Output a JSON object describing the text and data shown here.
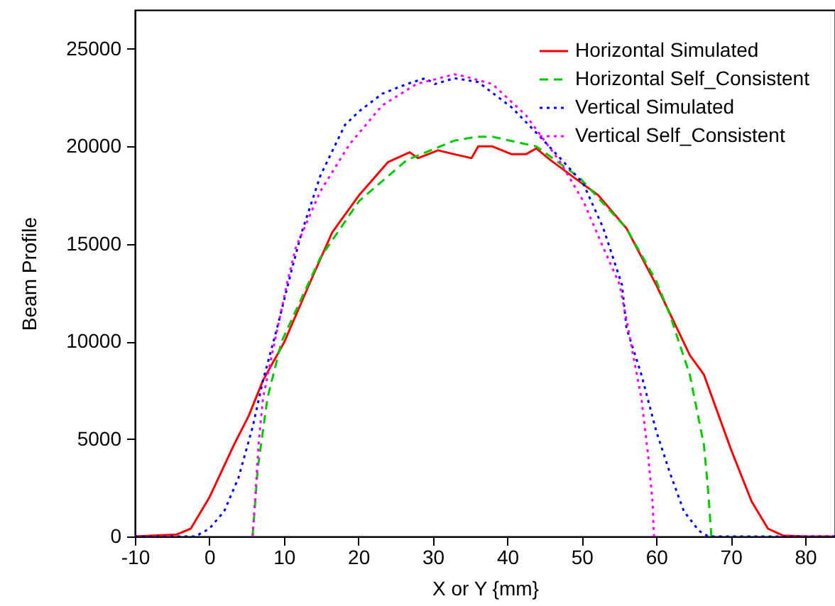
{
  "chart_data": {
    "type": "line",
    "xlabel": "X or Y {mm}",
    "ylabel": "Beam Profile",
    "xlim": [
      -10,
      84
    ],
    "ylim": [
      0,
      27000
    ],
    "xticks": [
      -10,
      0,
      10,
      20,
      30,
      40,
      50,
      60,
      70,
      80
    ],
    "yticks": [
      0,
      5000,
      10000,
      15000,
      20000,
      25000
    ],
    "legend": "top right",
    "grid": false,
    "marker": "none",
    "series": [
      {
        "name": "Horizontal Simulated",
        "color": "#ff0000",
        "line_style": "solid",
        "x": [
          -10,
          -4.4,
          -2.5,
          0,
          3.3,
          5.3,
          7.2,
          10.1,
          13.6,
          16.5,
          20.1,
          24,
          26.9,
          28,
          30.7,
          32.9,
          35.2,
          36.1,
          38,
          40.6,
          42.5,
          43.9,
          45.8,
          49.7,
          52.2,
          56,
          60,
          64.5,
          66.4,
          70,
          72.8,
          75,
          77,
          80,
          84
        ],
        "values": [
          0,
          100,
          400,
          2000,
          4700,
          6200,
          8000,
          10000,
          13100,
          15600,
          17500,
          19200,
          19700,
          19400,
          19800,
          19600,
          19400,
          20000,
          20000,
          19600,
          19600,
          19900,
          19300,
          18200,
          17500,
          15800,
          12900,
          9300,
          8300,
          4500,
          1800,
          400,
          50,
          0,
          0
        ]
      },
      {
        "name": "Horizontal Self_Consistent",
        "color": "#00cc00",
        "line_style": "dashed",
        "x": [
          5.8,
          6.5,
          7.8,
          9.7,
          14.9,
          20.1,
          26.5,
          32.9,
          36,
          38,
          43.9,
          49.7,
          56,
          60,
          61.8,
          64.5,
          66.4,
          67,
          67.4
        ],
        "values": [
          0,
          3500,
          7100,
          10000,
          14300,
          17200,
          19300,
          20300,
          20500,
          20500,
          20000,
          18400,
          15800,
          13100,
          11400,
          8300,
          4700,
          2200,
          0
        ]
      },
      {
        "name": "Vertical Simulated",
        "color": "#0000ff",
        "line_style": "dotted",
        "x": [
          -10,
          -1.9,
          0,
          2,
          3.9,
          5.8,
          7.2,
          9.1,
          11,
          12.4,
          14.9,
          18.2,
          20.1,
          23.2,
          26.5,
          29,
          30.3,
          32.9,
          36.1,
          40.6,
          43.9,
          47.1,
          50.2,
          52.9,
          55.4,
          56,
          58,
          60,
          61.8,
          63.7,
          65.7,
          67,
          84
        ],
        "values": [
          0,
          0,
          400,
          1300,
          3000,
          5600,
          8000,
          10700,
          13600,
          15600,
          18500,
          21100,
          21800,
          22700,
          23200,
          23500,
          23200,
          23500,
          23300,
          22000,
          20700,
          19400,
          18100,
          15800,
          12900,
          10700,
          8300,
          5400,
          3300,
          1300,
          300,
          0,
          0
        ]
      },
      {
        "name": "Vertical Self_Consistent",
        "color": "#ff00ff",
        "line_style": "dotted",
        "x": [
          5.8,
          6.2,
          6.6,
          7.2,
          8.5,
          10.5,
          11.6,
          14.9,
          18.8,
          23.2,
          27.8,
          32.9,
          34.2,
          38,
          42.5,
          47.1,
          50.2,
          52.9,
          55.1,
          56.8,
          58,
          58.9,
          59.5,
          59.7
        ],
        "values": [
          0,
          2200,
          4700,
          7100,
          9500,
          13100,
          14800,
          17700,
          20100,
          22100,
          23200,
          23700,
          23600,
          23200,
          21600,
          19200,
          17200,
          14800,
          12900,
          9500,
          7100,
          4200,
          1800,
          0
        ]
      }
    ]
  }
}
